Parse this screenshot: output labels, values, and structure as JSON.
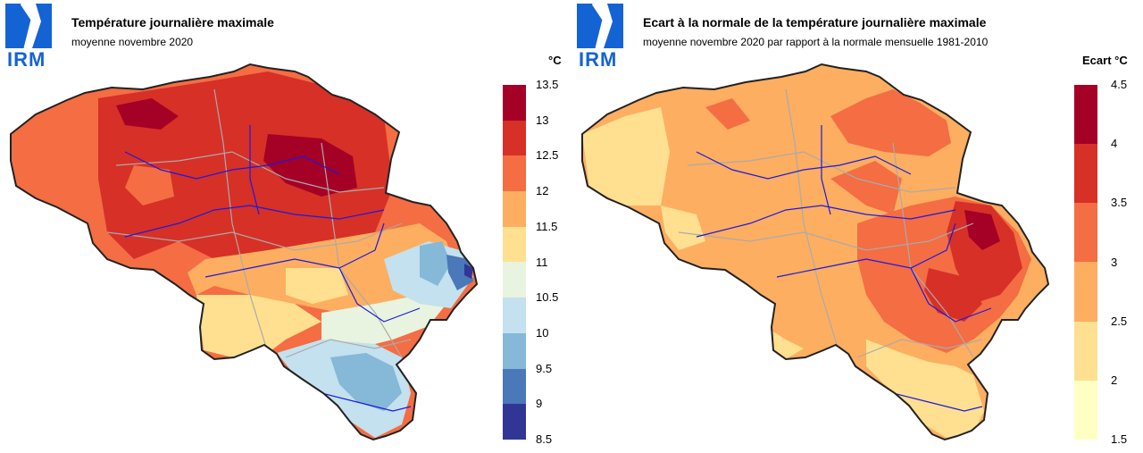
{
  "left_panel": {
    "logo_text": "IRM",
    "title": "Température journalière maximale",
    "subtitle": "moyenne novembre 2020",
    "unit": "°C",
    "legend_colors": [
      "#a50026",
      "#d73027",
      "#f46d43",
      "#fdae61",
      "#fee090",
      "#e8f3e0",
      "#c3e1ee",
      "#86b8d8",
      "#4a78b8",
      "#313695"
    ],
    "legend_ticks": [
      "13.5",
      "13",
      "12.5",
      "12",
      "11.5",
      "11",
      "10.5",
      "10",
      "9.5",
      "9",
      "8.5"
    ]
  },
  "right_panel": {
    "logo_text": "IRM",
    "title": "Ecart à la normale de la température journalière maximale",
    "subtitle": "moyenne novembre 2020 par rapport à la normale mensuelle 1981-2010",
    "unit": "Ecart °C",
    "legend_colors": [
      "#a50026",
      "#d73027",
      "#f46d43",
      "#fdae61",
      "#fee090",
      "#ffffc4"
    ],
    "legend_ticks": [
      "4.5",
      "4",
      "3.5",
      "3",
      "2.5",
      "2",
      "1.5"
    ]
  }
}
